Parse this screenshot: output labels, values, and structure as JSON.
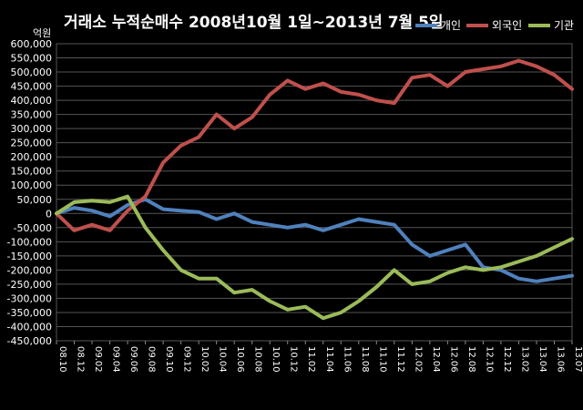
{
  "chart_data": {
    "type": "line",
    "title": "거래소 누적순매수 2008년10월 1일~2013년 7월 5일",
    "ylabel": "억원",
    "ylim": [
      -450000,
      600000
    ],
    "y_ticks": [
      600000,
      550000,
      500000,
      450000,
      400000,
      350000,
      300000,
      250000,
      200000,
      150000,
      100000,
      50000,
      0,
      -50000,
      -100000,
      -150000,
      -200000,
      -250000,
      -300000,
      -350000,
      -400000,
      -450000
    ],
    "y_tick_labels": [
      "600,000",
      "550,000",
      "500,000",
      "450,000",
      "400,000",
      "350,000",
      "300,000",
      "250,000",
      "200,000",
      "150,000",
      "100,000",
      "50,000",
      "0",
      "-50,000",
      "-100,000",
      "-150,000",
      "-200,000",
      "-250,000",
      "-300,000",
      "-350,000",
      "-400,000",
      "-450,000"
    ],
    "grid": true,
    "legend_position": "top-right",
    "x": [
      "08.10",
      "08.12",
      "09.02",
      "09.04",
      "09.06",
      "09.08",
      "09.10",
      "09.12",
      "10.02",
      "10.04",
      "10.06",
      "10.08",
      "10.10",
      "10.12",
      "11.02",
      "11.04",
      "11.06",
      "11.08",
      "11.10",
      "11.12",
      "12.02",
      "12.04",
      "12.06",
      "12.08",
      "12.10",
      "12.12",
      "13.02",
      "13.04",
      "13.06",
      "13.07"
    ],
    "series": [
      {
        "name": "개인",
        "color": "#4f81bd",
        "values": [
          0,
          20000,
          10000,
          -10000,
          30000,
          50000,
          15000,
          10000,
          5000,
          -20000,
          0,
          -30000,
          -40000,
          -50000,
          -40000,
          -60000,
          -40000,
          -20000,
          -30000,
          -40000,
          -110000,
          -150000,
          -130000,
          -110000,
          -190000,
          -200000,
          -230000,
          -240000,
          -230000,
          -220000
        ]
      },
      {
        "name": "외국인",
        "color": "#c0504d",
        "values": [
          0,
          -60000,
          -40000,
          -60000,
          10000,
          60000,
          180000,
          240000,
          270000,
          350000,
          300000,
          340000,
          420000,
          470000,
          440000,
          460000,
          430000,
          420000,
          400000,
          390000,
          480000,
          490000,
          450000,
          500000,
          510000,
          520000,
          540000,
          520000,
          490000,
          440000
        ]
      },
      {
        "name": "기관",
        "color": "#9bbb59",
        "values": [
          0,
          40000,
          45000,
          40000,
          60000,
          -50000,
          -130000,
          -200000,
          -230000,
          -230000,
          -280000,
          -270000,
          -310000,
          -340000,
          -330000,
          -370000,
          -350000,
          -310000,
          -260000,
          -200000,
          -250000,
          -240000,
          -210000,
          -190000,
          -200000,
          -190000,
          -170000,
          -150000,
          -120000,
          -90000
        ]
      }
    ]
  }
}
